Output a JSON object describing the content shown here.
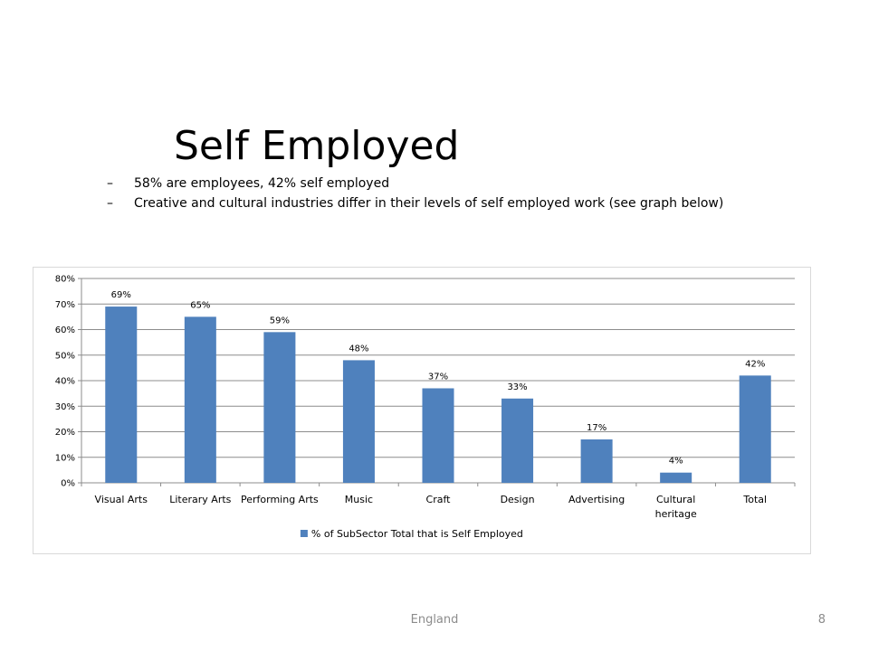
{
  "slide": {
    "title": "Self Employed",
    "bullet_marker": "–",
    "bullets": [
      "58% are employees, 42% self employed",
      "Creative and cultural industries differ in their levels of self employed work (see graph below)"
    ],
    "footer": "England",
    "page_number": "8"
  },
  "chart_data": {
    "type": "bar",
    "categories": [
      "Visual Arts",
      "Literary Arts",
      "Performing Arts",
      "Music",
      "Craft",
      "Design",
      "Advertising",
      "Cultural heritage",
      "Total"
    ],
    "category_label_lines": [
      [
        "Visual Arts"
      ],
      [
        "Literary Arts"
      ],
      [
        "Performing Arts"
      ],
      [
        "Music"
      ],
      [
        "Craft"
      ],
      [
        "Design"
      ],
      [
        "Advertising"
      ],
      [
        "Cultural",
        "heritage"
      ],
      [
        "Total"
      ]
    ],
    "series": [
      {
        "name": "% of SubSector Total that is Self Employed",
        "values": [
          69,
          65,
          59,
          48,
          37,
          33,
          17,
          4,
          42
        ],
        "labels": [
          "69%",
          "65%",
          "59%",
          "48%",
          "37%",
          "33%",
          "17%",
          "4%",
          "42%"
        ],
        "color": "#4f81bd"
      }
    ],
    "yticks": [
      0,
      10,
      20,
      30,
      40,
      50,
      60,
      70,
      80
    ],
    "ytick_labels": [
      "0%",
      "10%",
      "20%",
      "30%",
      "40%",
      "50%",
      "60%",
      "70%",
      "80%"
    ],
    "ylim": [
      0,
      80
    ],
    "grid": true,
    "legend_position": "bottom",
    "gridline_color": "#8c8c8c",
    "axis_color": "#8c8c8c"
  }
}
